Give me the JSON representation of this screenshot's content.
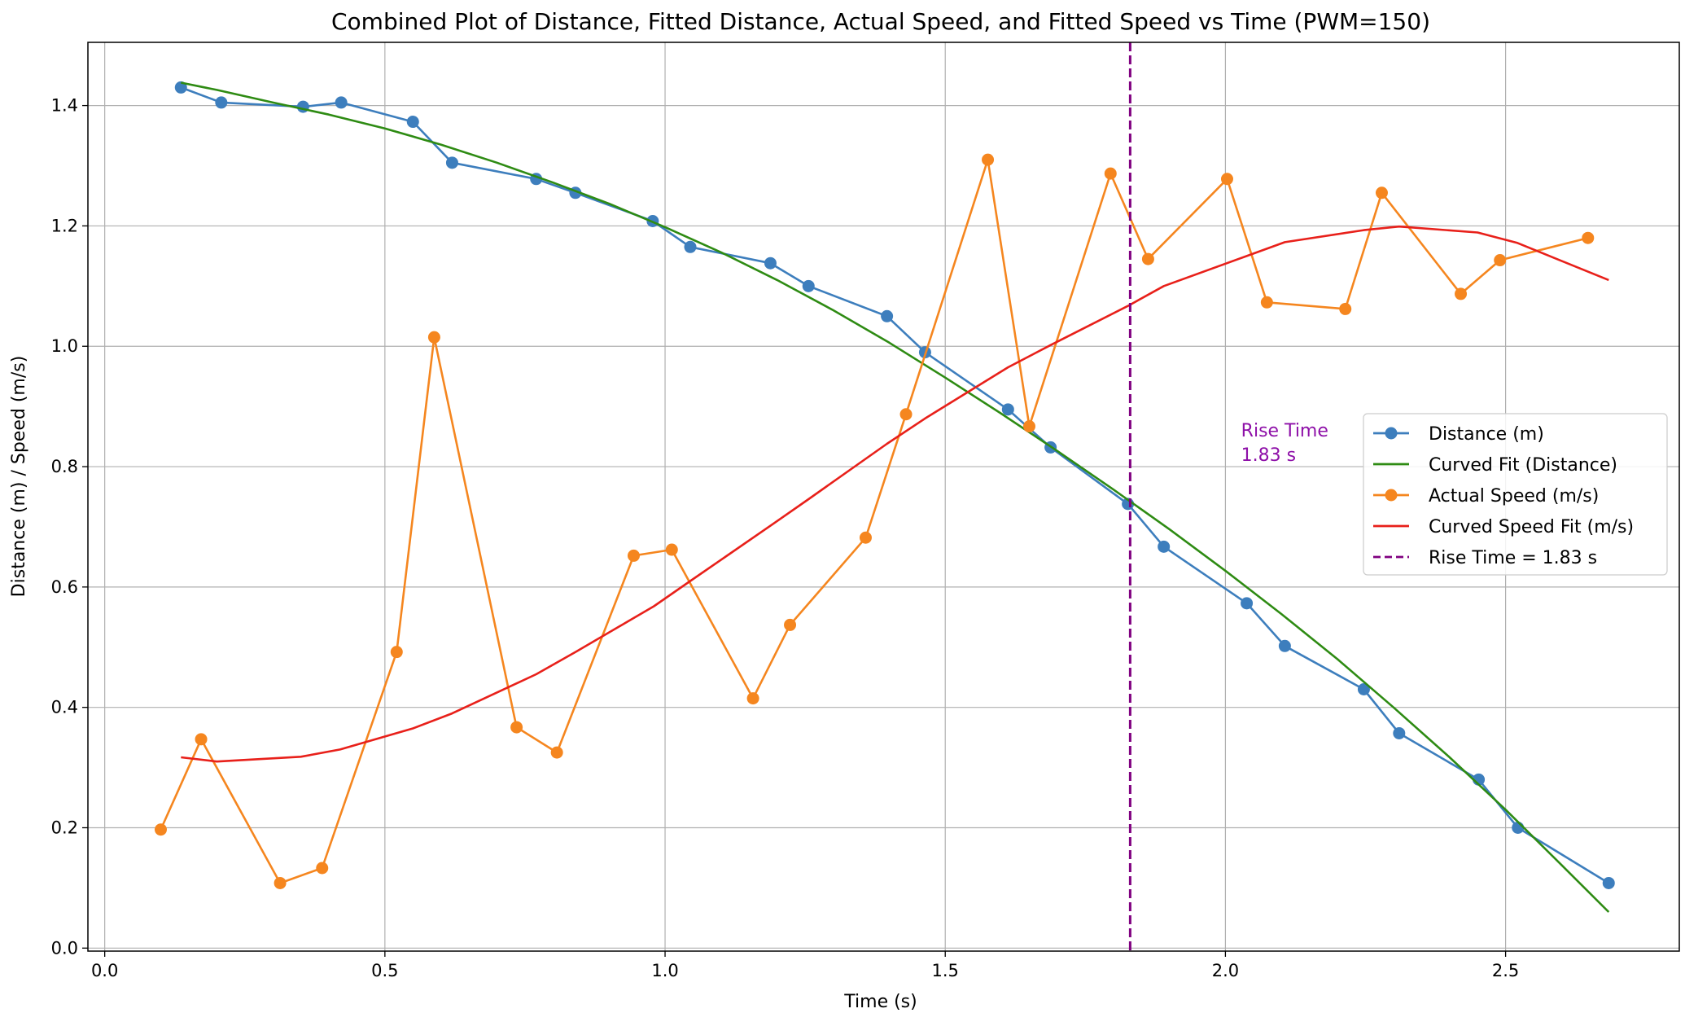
{
  "chart_data": {
    "type": "line",
    "title": "Combined Plot of Distance, Fitted Distance, Actual Speed, and Fitted Speed vs Time (PWM=150)",
    "xlabel": "Time (s)",
    "ylabel": "Distance (m) / Speed (m/s)",
    "xlim": [
      -0.03,
      2.81
    ],
    "ylim": [
      -0.005,
      1.505
    ],
    "x_ticks": [
      0.0,
      0.5,
      1.0,
      1.5,
      2.0,
      2.5
    ],
    "x_tick_labels": [
      "0.0",
      "0.5",
      "1.0",
      "1.5",
      "2.0",
      "2.5"
    ],
    "y_ticks": [
      0.0,
      0.2,
      0.4,
      0.6,
      0.8,
      1.0,
      1.2,
      1.4
    ],
    "y_tick_labels": [
      "0.0",
      "0.2",
      "0.4",
      "0.6",
      "0.8",
      "1.0",
      "1.2",
      "1.4"
    ],
    "grid": true,
    "legend_position": "center-right",
    "series": [
      {
        "name": "Distance (m)",
        "color": "#3d7ebd",
        "marker": "circle",
        "line": "solid",
        "x": [
          0.136,
          0.208,
          0.354,
          0.422,
          0.55,
          0.62,
          0.77,
          0.84,
          0.978,
          1.045,
          1.188,
          1.256,
          1.396,
          1.464,
          1.612,
          1.688,
          1.826,
          1.89,
          2.038,
          2.106,
          2.247,
          2.31,
          2.452,
          2.522,
          2.684
        ],
        "y": [
          1.43,
          1.405,
          1.398,
          1.405,
          1.373,
          1.305,
          1.278,
          1.255,
          1.208,
          1.165,
          1.138,
          1.1,
          1.05,
          0.99,
          0.895,
          0.832,
          0.738,
          0.667,
          0.573,
          0.502,
          0.43,
          0.357,
          0.28,
          0.2,
          0.108
        ]
      },
      {
        "name": "Curved Fit (Distance)",
        "color": "#2e8b13",
        "marker": "none",
        "line": "solid",
        "x": [
          0.136,
          0.2,
          0.3,
          0.4,
          0.5,
          0.6,
          0.7,
          0.8,
          0.9,
          1.0,
          1.1,
          1.2,
          1.3,
          1.4,
          1.5,
          1.6,
          1.7,
          1.8,
          1.9,
          2.0,
          2.1,
          2.2,
          2.3,
          2.4,
          2.5,
          2.6,
          2.684
        ],
        "y": [
          1.438,
          1.426,
          1.405,
          1.385,
          1.362,
          1.335,
          1.305,
          1.272,
          1.237,
          1.198,
          1.156,
          1.11,
          1.06,
          1.006,
          0.948,
          0.888,
          0.826,
          0.762,
          0.696,
          0.627,
          0.555,
          0.48,
          0.4,
          0.317,
          0.23,
          0.138,
          0.06
        ]
      },
      {
        "name": "Actual Speed (m/s)",
        "color": "#f5861f",
        "marker": "circle",
        "line": "solid",
        "x": [
          0.1,
          0.172,
          0.313,
          0.388,
          0.521,
          0.588,
          0.735,
          0.807,
          0.944,
          1.012,
          1.157,
          1.223,
          1.358,
          1.43,
          1.576,
          1.65,
          1.795,
          1.862,
          2.003,
          2.074,
          2.214,
          2.279,
          2.42,
          2.49,
          2.647
        ],
        "y": [
          0.197,
          0.347,
          0.108,
          0.133,
          0.492,
          1.015,
          0.367,
          0.325,
          0.652,
          0.662,
          0.415,
          0.537,
          0.682,
          0.887,
          1.31,
          0.867,
          1.287,
          1.145,
          1.278,
          1.073,
          1.062,
          1.255,
          1.087,
          1.143,
          1.18
        ]
      },
      {
        "name": "Curved Speed Fit (m/s)",
        "color": "#e8201a",
        "marker": "none",
        "line": "solid",
        "x": [
          0.136,
          0.2,
          0.35,
          0.42,
          0.55,
          0.62,
          0.77,
          0.84,
          0.98,
          1.045,
          1.19,
          1.256,
          1.396,
          1.464,
          1.612,
          1.688,
          1.826,
          1.89,
          2.038,
          2.106,
          2.247,
          2.31,
          2.45,
          2.52,
          2.684
        ],
        "y": [
          0.317,
          0.31,
          0.318,
          0.33,
          0.365,
          0.39,
          0.455,
          0.492,
          0.568,
          0.61,
          0.703,
          0.746,
          0.838,
          0.88,
          0.965,
          1.002,
          1.067,
          1.1,
          1.15,
          1.173,
          1.193,
          1.199,
          1.189,
          1.172,
          1.11
        ]
      }
    ],
    "vline": {
      "name": "Rise Time = 1.83 s",
      "x": 1.83,
      "color": "#800080",
      "line": "dashed"
    },
    "annotation": {
      "lines": [
        "Rise Time",
        "1.83 s"
      ],
      "x": 2.028,
      "y": 0.85,
      "color": "#8e10a8"
    }
  }
}
